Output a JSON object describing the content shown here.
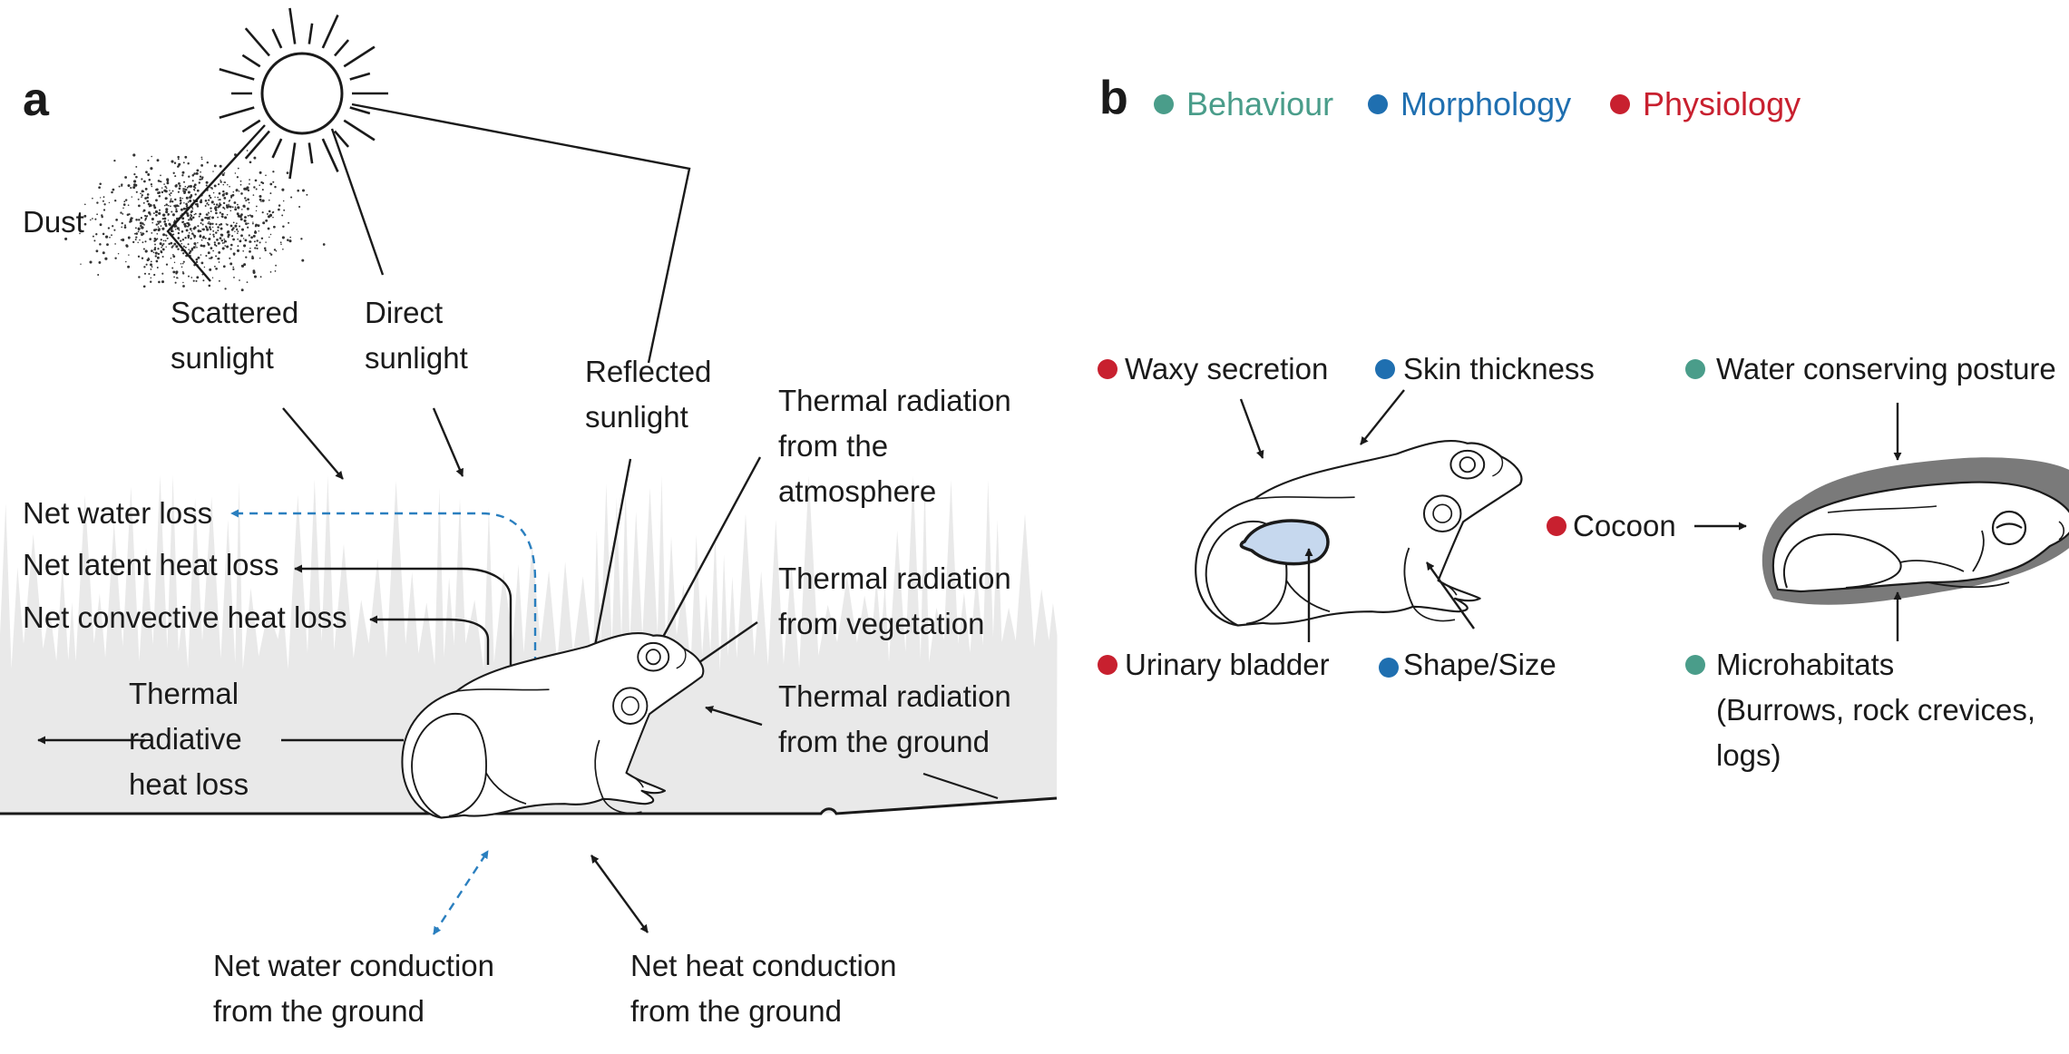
{
  "colors": {
    "behaviour": "#4a9d8a",
    "morphology": "#1f6fb0",
    "physiology": "#c8202f",
    "water_arrow": "#2a7fbf",
    "bladder_fill": "#c6d8ee",
    "cocoon_fill": "#777777",
    "vegetation": "#e9e9e9"
  },
  "panel_a": {
    "label": "a",
    "dust": "Dust",
    "scattered_sunlight": [
      "Scattered",
      "sunlight"
    ],
    "direct_sunlight": [
      "Direct",
      "sunlight"
    ],
    "reflected_sunlight": [
      "Reflected",
      "sunlight"
    ],
    "thermal_atmosphere": [
      "Thermal radiation",
      "from the",
      "atmosphere"
    ],
    "thermal_vegetation": [
      "Thermal radiation",
      "from vegetation"
    ],
    "thermal_ground": [
      "Thermal radiation",
      "from the ground"
    ],
    "net_water_loss": "Net water loss",
    "net_latent_heat_loss": "Net latent heat loss",
    "net_convective_heat_loss": "Net convective heat loss",
    "thermal_radiative_heat_loss": [
      "Thermal",
      "radiative",
      "heat loss"
    ],
    "net_water_conduction": [
      "Net water conduction",
      "from the ground"
    ],
    "net_heat_conduction": [
      "Net heat conduction",
      "from the ground"
    ]
  },
  "panel_b": {
    "label": "b",
    "legend": [
      {
        "key": "behaviour",
        "label": "Behaviour"
      },
      {
        "key": "morphology",
        "label": "Morphology"
      },
      {
        "key": "physiology",
        "label": "Physiology"
      }
    ],
    "waxy_secretion": "Waxy secretion",
    "skin_thickness": "Skin thickness",
    "urinary_bladder": "Urinary bladder",
    "shape_size": "Shape/Size",
    "water_conserving_posture": "Water conserving posture",
    "cocoon": "Cocoon",
    "microhabitats": [
      "Microhabitats",
      "(Burrows, rock crevices,",
      "logs)"
    ]
  }
}
